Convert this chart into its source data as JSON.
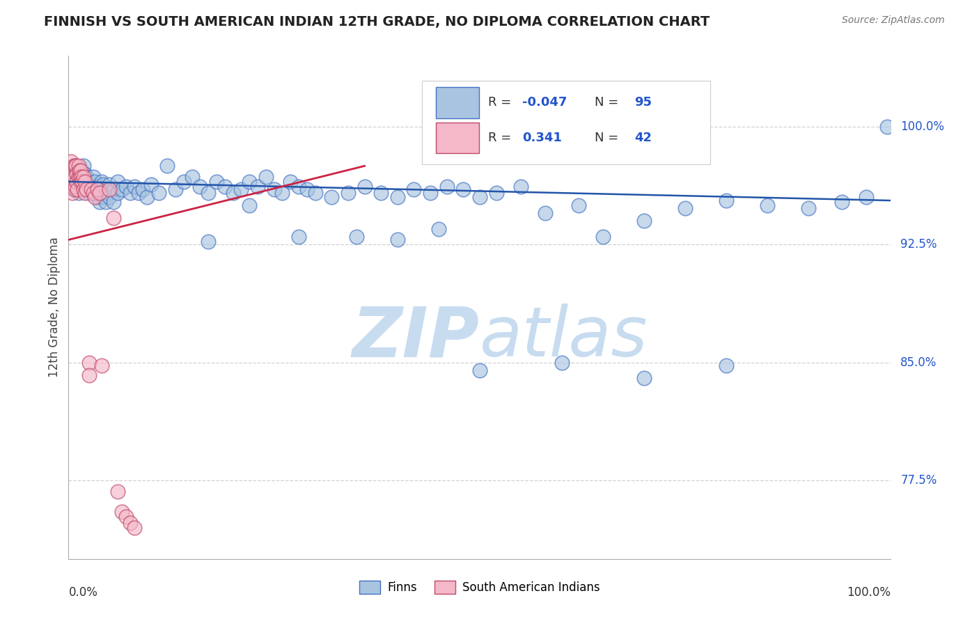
{
  "title": "FINNISH VS SOUTH AMERICAN INDIAN 12TH GRADE, NO DIPLOMA CORRELATION CHART",
  "source": "Source: ZipAtlas.com",
  "ylabel": "12th Grade, No Diploma",
  "ytick_labels": [
    "77.5%",
    "85.0%",
    "92.5%",
    "100.0%"
  ],
  "ytick_values": [
    0.775,
    0.85,
    0.925,
    1.0
  ],
  "xlim": [
    0.0,
    1.0
  ],
  "ylim": [
    0.725,
    1.045
  ],
  "r_finns": "-0.047",
  "n_finns": "95",
  "r_sai": "0.341",
  "n_sai": "42",
  "blue_fill": "#A8C4E0",
  "blue_edge": "#4472C4",
  "pink_fill": "#F4B8C8",
  "pink_edge": "#C0496A",
  "blue_line": "#2255AA",
  "pink_line": "#CC2244",
  "value_color": "#2255CC",
  "label_color": "#333333",
  "grid_color": "#CCCCCC",
  "watermark_color": "#C8DCF0",
  "bg_color": "#FFFFFF",
  "finns_x": [
    0.005,
    0.008,
    0.01,
    0.012,
    0.015,
    0.015,
    0.018,
    0.02,
    0.022,
    0.022,
    0.025,
    0.025,
    0.028,
    0.03,
    0.03,
    0.032,
    0.032,
    0.035,
    0.035,
    0.038,
    0.038,
    0.04,
    0.04,
    0.042,
    0.042,
    0.045,
    0.045,
    0.048,
    0.05,
    0.05,
    0.055,
    0.055,
    0.06,
    0.06,
    0.065,
    0.07,
    0.075,
    0.08,
    0.085,
    0.09,
    0.095,
    0.1,
    0.11,
    0.12,
    0.13,
    0.14,
    0.15,
    0.16,
    0.17,
    0.18,
    0.19,
    0.2,
    0.21,
    0.22,
    0.23,
    0.24,
    0.25,
    0.26,
    0.27,
    0.28,
    0.29,
    0.3,
    0.32,
    0.34,
    0.36,
    0.38,
    0.4,
    0.42,
    0.44,
    0.46,
    0.48,
    0.5,
    0.52,
    0.55,
    0.58,
    0.62,
    0.65,
    0.7,
    0.75,
    0.8,
    0.85,
    0.9,
    0.94,
    0.97,
    0.995,
    0.17,
    0.22,
    0.28,
    0.35,
    0.4,
    0.45,
    0.5,
    0.6,
    0.7,
    0.8
  ],
  "finns_y": [
    0.963,
    0.96,
    0.965,
    0.958,
    0.972,
    0.968,
    0.975,
    0.97,
    0.968,
    0.962,
    0.965,
    0.958,
    0.962,
    0.968,
    0.96,
    0.965,
    0.958,
    0.962,
    0.955,
    0.96,
    0.952,
    0.965,
    0.958,
    0.963,
    0.955,
    0.96,
    0.952,
    0.958,
    0.963,
    0.955,
    0.96,
    0.952,
    0.965,
    0.958,
    0.96,
    0.962,
    0.958,
    0.962,
    0.958,
    0.96,
    0.955,
    0.963,
    0.958,
    0.975,
    0.96,
    0.965,
    0.968,
    0.962,
    0.958,
    0.965,
    0.962,
    0.958,
    0.96,
    0.965,
    0.962,
    0.968,
    0.96,
    0.958,
    0.965,
    0.962,
    0.96,
    0.958,
    0.955,
    0.958,
    0.962,
    0.958,
    0.955,
    0.96,
    0.958,
    0.962,
    0.96,
    0.955,
    0.958,
    0.962,
    0.945,
    0.95,
    0.93,
    0.94,
    0.948,
    0.953,
    0.95,
    0.948,
    0.952,
    0.955,
    1.0,
    0.927,
    0.95,
    0.93,
    0.93,
    0.928,
    0.935,
    0.845,
    0.85,
    0.84,
    0.848
  ],
  "sai_x": [
    0.002,
    0.003,
    0.004,
    0.005,
    0.005,
    0.006,
    0.007,
    0.007,
    0.008,
    0.008,
    0.009,
    0.01,
    0.01,
    0.011,
    0.012,
    0.012,
    0.013,
    0.014,
    0.015,
    0.015,
    0.016,
    0.017,
    0.018,
    0.018,
    0.02,
    0.02,
    0.022,
    0.025,
    0.025,
    0.028,
    0.03,
    0.032,
    0.035,
    0.038,
    0.04,
    0.05,
    0.055,
    0.06,
    0.065,
    0.07,
    0.075,
    0.08
  ],
  "sai_y": [
    0.968,
    0.978,
    0.972,
    0.965,
    0.958,
    0.975,
    0.968,
    0.96,
    0.975,
    0.962,
    0.975,
    0.97,
    0.965,
    0.96,
    0.975,
    0.968,
    0.972,
    0.968,
    0.972,
    0.965,
    0.968,
    0.965,
    0.968,
    0.96,
    0.965,
    0.958,
    0.96,
    0.85,
    0.842,
    0.96,
    0.958,
    0.955,
    0.96,
    0.958,
    0.848,
    0.96,
    0.942,
    0.768,
    0.755,
    0.752,
    0.748,
    0.745
  ]
}
